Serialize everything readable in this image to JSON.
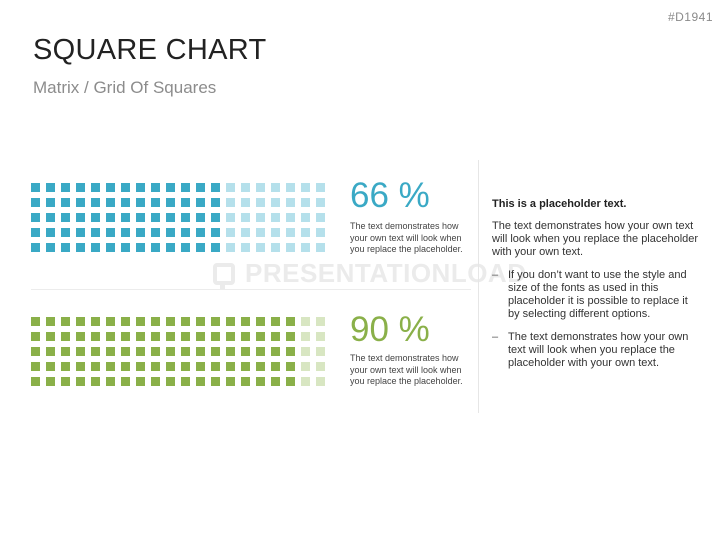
{
  "slide_id": "#D1941",
  "title": "SQUARE CHART",
  "subtitle": "Matrix / Grid Of Squares",
  "watermark": "PRESENTATIONLOAD",
  "rows": [
    {
      "percent_label": "66 %",
      "percent_value": 66,
      "grid": {
        "total": 100,
        "columns": 20
      },
      "description": "The text demonstrates how your own text will look when you replace the placeholder.",
      "colors": {
        "filled": "#3aa9c5",
        "empty": "#b5e0eb"
      }
    },
    {
      "percent_label": "90 %",
      "percent_value": 90,
      "grid": {
        "total": 100,
        "columns": 20
      },
      "description": "The text demonstrates how your own text will look when you replace the placeholder.",
      "colors": {
        "filled": "#8ab049",
        "empty": "#d8e6c2"
      }
    }
  ],
  "sidebar": {
    "heading": "This is a placeholder text.",
    "paragraph": "The text demonstrates how your own text will look when you replace the placeholder with your own text.",
    "bullets": [
      "If you don’t want to use the style and size of the fonts as used in this placeholder it is possible to replace it by selecting different options.",
      "The text demonstrates how your own text will look when you replace the placeholder with your own text."
    ]
  }
}
